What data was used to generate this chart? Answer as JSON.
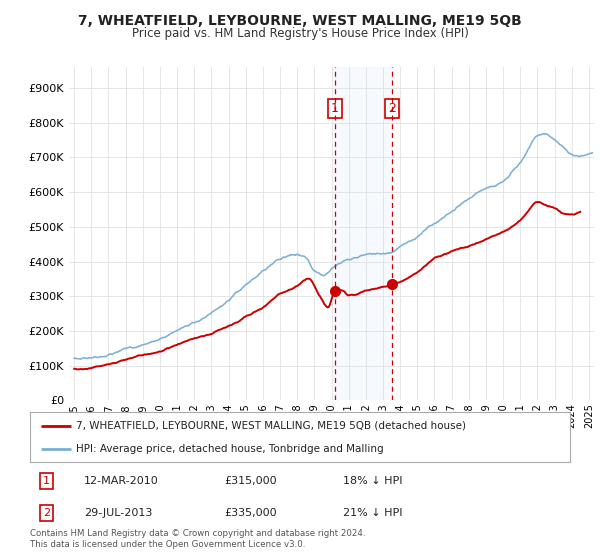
{
  "title": "7, WHEATFIELD, LEYBOURNE, WEST MALLING, ME19 5QB",
  "subtitle": "Price paid vs. HM Land Registry's House Price Index (HPI)",
  "ylabel_ticks": [
    "£0",
    "£100K",
    "£200K",
    "£300K",
    "£400K",
    "£500K",
    "£600K",
    "£700K",
    "£800K",
    "£900K"
  ],
  "ytick_values": [
    0,
    100000,
    200000,
    300000,
    400000,
    500000,
    600000,
    700000,
    800000,
    900000
  ],
  "ylim": [
    0,
    960000
  ],
  "xlim_start": 1994.7,
  "xlim_end": 2025.3,
  "hpi_color": "#7bafd4",
  "price_color": "#cc0000",
  "shade_color": "#ddeeff",
  "marker1_x": 2010.19,
  "marker2_x": 2013.55,
  "marker1_label": "1",
  "marker2_label": "2",
  "marker1_price_y": 315000,
  "marker2_price_y": 335000,
  "marker1_date": "12-MAR-2010",
  "marker1_price": "£315,000",
  "marker1_pct": "18% ↓ HPI",
  "marker2_date": "29-JUL-2013",
  "marker2_price": "£335,000",
  "marker2_pct": "21% ↓ HPI",
  "legend_property": "7, WHEATFIELD, LEYBOURNE, WEST MALLING, ME19 5QB (detached house)",
  "legend_hpi": "HPI: Average price, detached house, Tonbridge and Malling",
  "footer": "Contains HM Land Registry data © Crown copyright and database right 2024.\nThis data is licensed under the Open Government Licence v3.0.",
  "background_color": "#ffffff",
  "grid_color": "#e0e0e0"
}
